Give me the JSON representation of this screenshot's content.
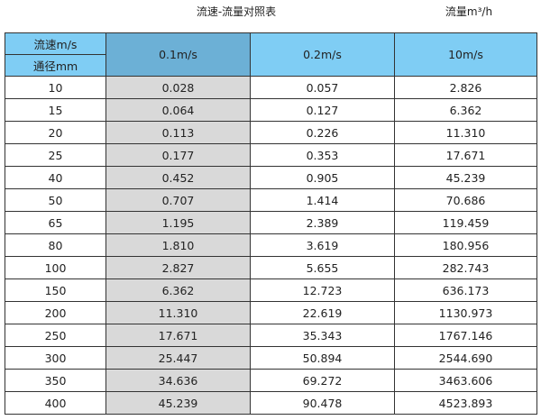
{
  "title": "流速-流量对照表",
  "unit_label": "流量m³/h",
  "header": {
    "velocity_label": "流速m/s",
    "diameter_label": "通径mm",
    "columns": [
      "0.1m/s",
      "0.2m/s",
      "10m/s"
    ]
  },
  "colors": {
    "header": "#7fcdf4",
    "header_selected": "#6cb0d6",
    "selected_column": "#d9d9d9"
  },
  "rows": [
    [
      "10",
      "0.028",
      "0.057",
      "2.826"
    ],
    [
      "15",
      "0.064",
      "0.127",
      "6.362"
    ],
    [
      "20",
      "0.113",
      "0.226",
      "11.310"
    ],
    [
      "25",
      "0.177",
      "0.353",
      "17.671"
    ],
    [
      "40",
      "0.452",
      "0.905",
      "45.239"
    ],
    [
      "50",
      "0.707",
      "1.414",
      "70.686"
    ],
    [
      "65",
      "1.195",
      "2.389",
      "119.459"
    ],
    [
      "80",
      "1.810",
      "3.619",
      "180.956"
    ],
    [
      "100",
      "2.827",
      "5.655",
      "282.743"
    ],
    [
      "150",
      "6.362",
      "12.723",
      "636.173"
    ],
    [
      "200",
      "11.310",
      "22.619",
      "1130.973"
    ],
    [
      "250",
      "17.671",
      "35.343",
      "1767.146"
    ],
    [
      "300",
      "25.447",
      "50.894",
      "2544.690"
    ],
    [
      "350",
      "34.636",
      "69.272",
      "3463.606"
    ],
    [
      "400",
      "45.239",
      "90.478",
      "4523.893"
    ]
  ]
}
